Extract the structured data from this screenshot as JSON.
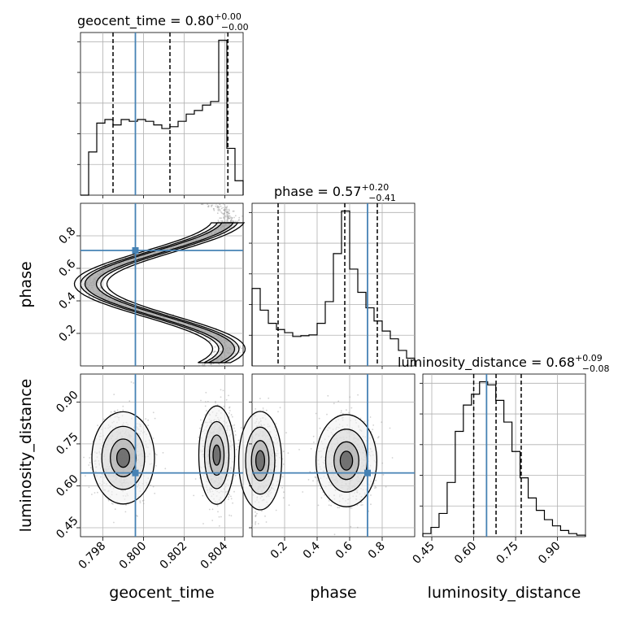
{
  "chart_data": {
    "type": "corner",
    "parameters": [
      "geocent_time",
      "phase",
      "luminosity_distance"
    ],
    "truths": {
      "geocent_time": 0.7996,
      "phase": 0.71,
      "luminosity_distance": 0.646
    },
    "titles": [
      {
        "param": "geocent_time",
        "text": "geocent_time = 0.80",
        "plus": "+0.00",
        "minus": "−0.00"
      },
      {
        "param": "phase",
        "text": "phase = 0.57",
        "plus": "+0.20",
        "minus": "−0.41"
      },
      {
        "param": "luminosity_distance",
        "text": "luminosity_distance = 0.68",
        "plus": "+0.09",
        "minus": "−0.08"
      }
    ],
    "axes": {
      "geocent_time": {
        "range": [
          0.7969,
          0.8049
        ],
        "ticks": [
          0.798,
          0.8,
          0.802,
          0.804
        ],
        "tick_labels": [
          "0.798",
          "0.800",
          "0.802",
          "0.804"
        ]
      },
      "phase": {
        "range": [
          0.0,
          1.0
        ],
        "ticks": [
          0.2,
          0.4,
          0.6,
          0.8
        ],
        "tick_labels": [
          "0.2",
          "0.4",
          "0.6",
          "0.8"
        ]
      },
      "luminosity_distance": {
        "range": [
          0.418,
          1.0
        ],
        "ticks": [
          0.45,
          0.6,
          0.75,
          0.9
        ],
        "tick_labels": [
          "0.45",
          "0.60",
          "0.75",
          "0.90"
        ]
      }
    },
    "histograms": {
      "geocent_time": {
        "edges": [
          0.7969,
          0.7973,
          0.7977,
          0.7981,
          0.7985,
          0.7989,
          0.7993,
          0.7997,
          0.8001,
          0.8005,
          0.8009,
          0.8013,
          0.8017,
          0.8021,
          0.8025,
          0.8029,
          0.8033,
          0.8037,
          0.8041,
          0.8045,
          0.8049
        ],
        "heights": [
          0.0,
          1.2,
          2.0,
          2.1,
          1.95,
          2.1,
          2.05,
          2.1,
          2.05,
          1.95,
          1.85,
          1.9,
          2.05,
          2.25,
          2.35,
          2.5,
          2.6,
          4.3,
          1.3,
          0.4
        ],
        "quantiles": [
          0.7985,
          0.8013,
          0.80415
        ]
      },
      "phase": {
        "edges": [
          0.0,
          0.05,
          0.1,
          0.15,
          0.2,
          0.25,
          0.3,
          0.35,
          0.4,
          0.45,
          0.5,
          0.55,
          0.6,
          0.65,
          0.7,
          0.75,
          0.8,
          0.85,
          0.9,
          0.95,
          1.0
        ],
        "heights": [
          1.0,
          0.72,
          0.55,
          0.47,
          0.43,
          0.38,
          0.39,
          0.4,
          0.55,
          0.83,
          1.45,
          2.0,
          1.25,
          0.95,
          0.75,
          0.58,
          0.45,
          0.35,
          0.2,
          0.1
        ],
        "quantiles": [
          0.16,
          0.57,
          0.77
        ]
      },
      "luminosity_distance": {
        "edges": [
          0.418,
          0.447,
          0.476,
          0.505,
          0.534,
          0.563,
          0.592,
          0.621,
          0.65,
          0.679,
          0.708,
          0.737,
          0.766,
          0.795,
          0.824,
          0.853,
          0.882,
          0.911,
          0.94,
          0.969,
          1.0
        ],
        "heights": [
          0.02,
          0.06,
          0.15,
          0.35,
          0.68,
          0.85,
          0.92,
          1.0,
          0.98,
          0.88,
          0.74,
          0.55,
          0.38,
          0.25,
          0.17,
          0.11,
          0.07,
          0.04,
          0.02,
          0.01
        ],
        "quantiles": [
          0.6,
          0.68,
          0.77
        ]
      }
    }
  }
}
